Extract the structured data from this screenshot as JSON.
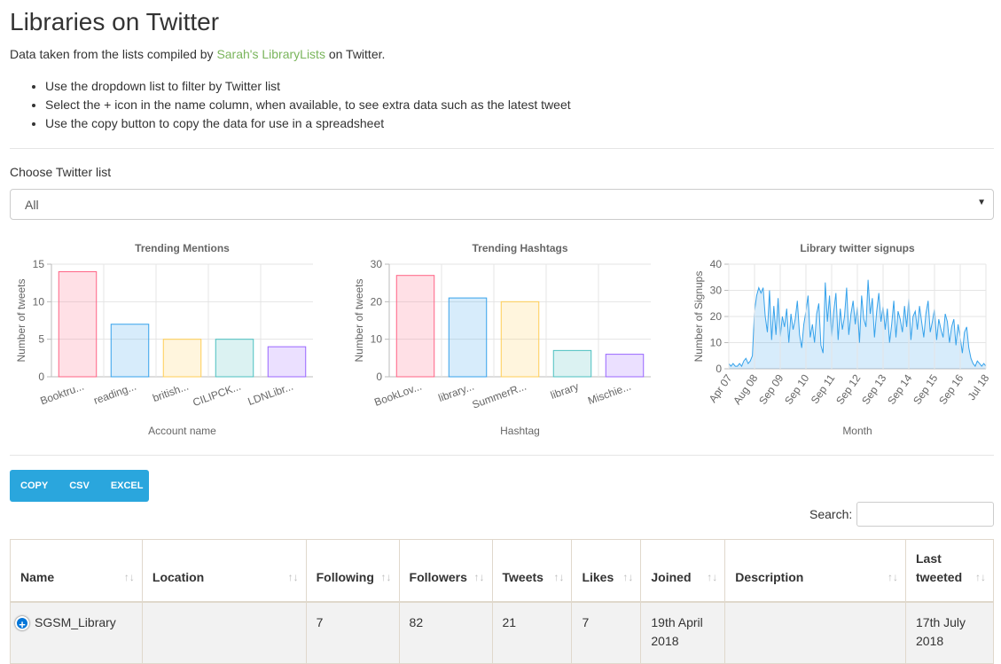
{
  "page": {
    "title": "Libraries on Twitter",
    "intro_prefix": "Data taken from the lists compiled by ",
    "intro_link": "Sarah's LibraryLists",
    "intro_suffix": " on Twitter.",
    "tips": [
      "Use the dropdown list to filter by Twitter list",
      "Select the + icon in the name column, when available, to see extra data such as the latest tweet",
      "Use the copy button to copy the data for use in a spreadsheet"
    ],
    "link_color": "#7ab55c"
  },
  "filter": {
    "label": "Choose Twitter list",
    "selected": "All"
  },
  "buttons": {
    "copy": "COPY",
    "csv": "CSV",
    "excel": "EXCEL",
    "color": "#2aa6dd"
  },
  "search": {
    "label": "Search:"
  },
  "table": {
    "headers": [
      "Name",
      "Location",
      "Following",
      "Followers",
      "Tweets",
      "Likes",
      "Joined",
      "Description",
      "Last tweeted"
    ],
    "sort_icon": "↑↓",
    "expand_icon": "+",
    "rows": [
      [
        "SGSM_Library",
        "",
        "7",
        "82",
        "21",
        "7",
        "19th April 2018",
        "",
        "17th July 2018"
      ]
    ]
  },
  "chart_data": [
    {
      "type": "bar",
      "title": "Trending Mentions",
      "xlabel": "Account name",
      "ylabel": "Number of tweets",
      "categories": [
        "Booktru...",
        "reading...",
        "british...",
        "CILIPCK...",
        "LDNLibr..."
      ],
      "values": [
        14,
        7,
        5,
        5,
        4
      ],
      "ylim": [
        0,
        15
      ],
      "yticks": [
        0,
        5,
        10,
        15
      ],
      "colors": [
        "#ff6384",
        "#36a2eb",
        "#ffce56",
        "#4bc0c0",
        "#9966ff"
      ]
    },
    {
      "type": "bar",
      "title": "Trending Hashtags",
      "xlabel": "Hashtag",
      "ylabel": "Number of tweets",
      "categories": [
        "BookLov...",
        "library...",
        "SummerR...",
        "library",
        "Mischie..."
      ],
      "values": [
        27,
        21,
        20,
        7,
        6
      ],
      "ylim": [
        0,
        30
      ],
      "yticks": [
        0,
        10,
        20,
        30
      ],
      "colors": [
        "#ff6384",
        "#36a2eb",
        "#ffce56",
        "#4bc0c0",
        "#9966ff"
      ]
    },
    {
      "type": "area",
      "title": "Library twitter signups",
      "xlabel": "Month",
      "ylabel": "Number of Signups",
      "ylim": [
        0,
        40
      ],
      "yticks": [
        0,
        10,
        20,
        30,
        40
      ],
      "xticks": [
        "Apr 07",
        "Aug 08",
        "Sep 09",
        "Sep 10",
        "Sep 11",
        "Sep 12",
        "Sep 13",
        "Sep 14",
        "Sep 15",
        "Sep 16",
        "Jul 18"
      ],
      "color": "#36a2eb",
      "values": [
        2,
        1,
        2,
        1,
        1,
        2,
        1,
        3,
        4,
        2,
        3,
        5,
        22,
        28,
        31,
        29,
        31,
        20,
        14,
        30,
        11,
        24,
        13,
        27,
        12,
        20,
        16,
        23,
        10,
        21,
        15,
        19,
        26,
        13,
        8,
        17,
        22,
        28,
        12,
        17,
        10,
        21,
        25,
        9,
        6,
        33,
        18,
        28,
        12,
        22,
        29,
        11,
        23,
        15,
        20,
        31,
        13,
        21,
        26,
        17,
        24,
        10,
        28,
        19,
        16,
        34,
        21,
        27,
        12,
        22,
        29,
        18,
        24,
        15,
        23,
        10,
        17,
        26,
        12,
        22,
        19,
        14,
        24,
        16,
        27,
        11,
        20,
        22,
        15,
        24,
        18,
        12,
        21,
        26,
        14,
        18,
        23,
        11,
        19,
        15,
        12,
        21,
        18,
        10,
        16,
        19,
        9,
        17,
        12,
        6,
        14,
        16,
        8,
        4,
        2,
        1,
        3,
        2,
        1,
        2,
        1
      ]
    }
  ]
}
